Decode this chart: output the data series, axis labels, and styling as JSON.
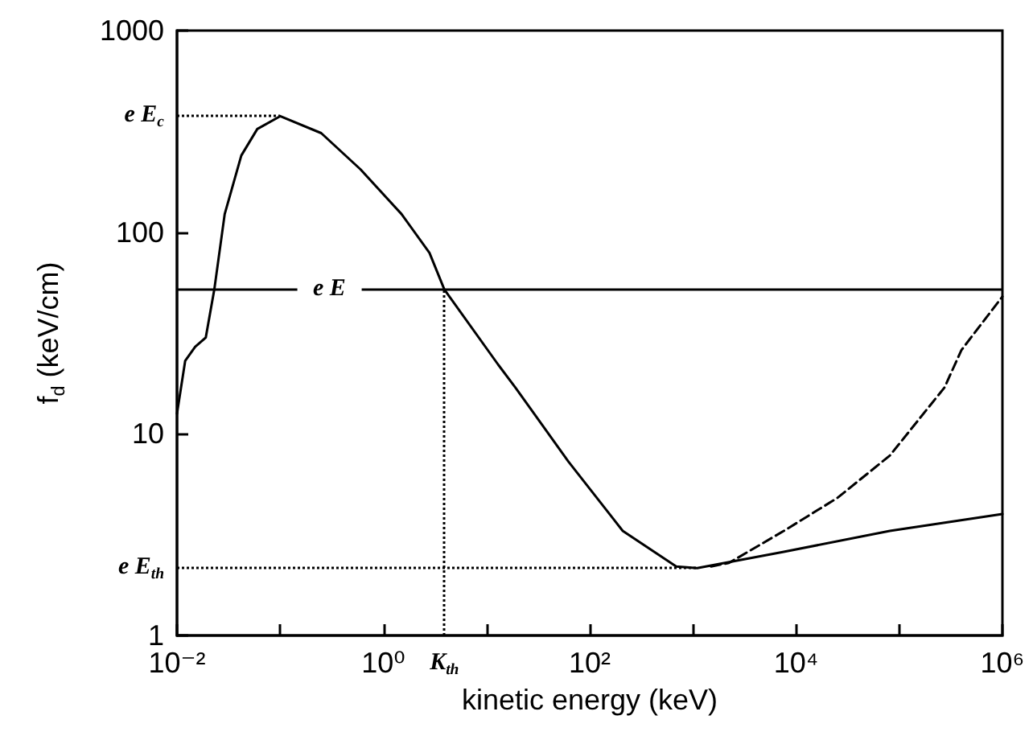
{
  "chart_data": {
    "type": "line",
    "xlabel": "kinetic energy (keV)",
    "ylabel": "f$_{d}$ (keV/cm)",
    "log": "xy",
    "marker": "none",
    "xlim": [
      0.01,
      1000000
    ],
    "ylim": [
      1,
      1000
    ],
    "xticks": [
      {
        "value": 0.01,
        "label": "10⁻²"
      },
      {
        "value": 0.1,
        "label": null
      },
      {
        "value": 1,
        "label": "10⁰"
      },
      {
        "value": 10,
        "label": null
      },
      {
        "value": 100,
        "label": "10²"
      },
      {
        "value": 1000,
        "label": null
      },
      {
        "value": 10000,
        "label": "10⁴"
      },
      {
        "value": 100000,
        "label": null
      },
      {
        "value": 1000000,
        "label": "10⁶"
      }
    ],
    "yticks": [
      1,
      10,
      100,
      1000
    ],
    "series": [
      {
        "color": "#000000",
        "line_style": "solid",
        "x": [
          0.01,
          0.012,
          0.015,
          0.019,
          0.023,
          0.029,
          0.042,
          0.06,
          0.1,
          0.25,
          0.6,
          1.5,
          2.8,
          3.9,
          13,
          19,
          62,
          209,
          690,
          1100,
          7600,
          81000,
          1000000
        ],
        "values": [
          12.6,
          23,
          27,
          30,
          52,
          123,
          240,
          325,
          376,
          310,
          205,
          123,
          79,
          52,
          22,
          17,
          7.3,
          3.3,
          2.2,
          2.16,
          2.6,
          3.3,
          4.0
        ]
      },
      {
        "color": "#000000",
        "line_style": "dashed",
        "x": [
          1500,
          2240,
          7600,
          25000,
          81000,
          275000,
          400000,
          1000000
        ],
        "values": [
          2.2,
          2.29,
          3.3,
          4.8,
          7.8,
          17,
          26,
          48
        ]
      }
    ],
    "ref_lines": [
      {
        "axis": "y",
        "value": 52,
        "color": "#000000",
        "line_style": "solid"
      },
      {
        "axis": "y",
        "value": 376,
        "label": "e E$_{c}$",
        "color": "#000000",
        "line_style": "dotted"
      },
      {
        "axis": "y",
        "value": 2.16,
        "label": "e E$_{th}$",
        "color": "#000000",
        "line_style": "dotted"
      },
      {
        "axis": "x",
        "value": 3.9,
        "label": "K$_{th}$",
        "color": "#000000",
        "line_style": "dotted"
      }
    ],
    "annotations": [
      {
        "text": "e E",
        "x": 0.3,
        "y": 52
      }
    ]
  }
}
